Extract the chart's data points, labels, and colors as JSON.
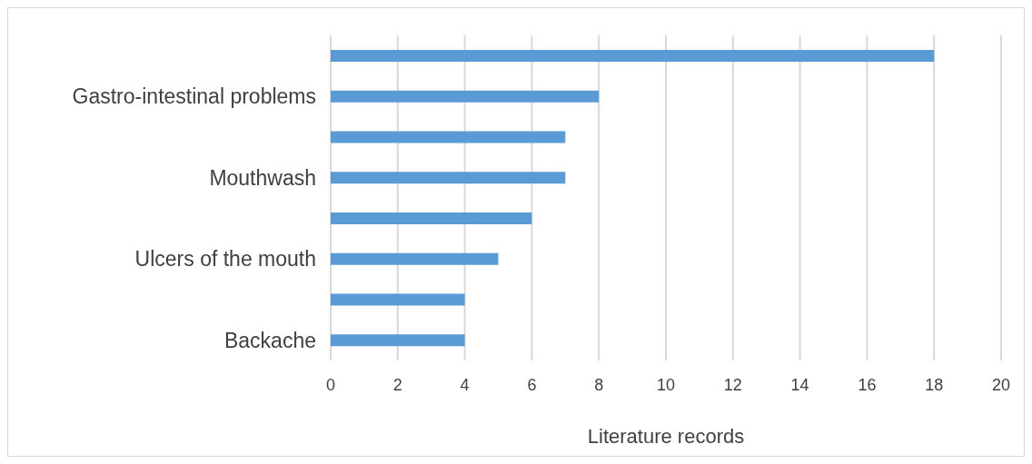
{
  "chart_data": {
    "type": "bar",
    "orientation": "horizontal",
    "xlabel": "Literature records",
    "categories": [
      null,
      "Gastro-intestinal problems",
      null,
      "Mouthwash",
      null,
      "Ulcers of the mouth",
      null,
      "Backache"
    ],
    "values": [
      18,
      8,
      7,
      7,
      6,
      5,
      4,
      4
    ],
    "color": "#5b9bd5",
    "xlim": [
      0,
      20
    ],
    "xticks": [
      0,
      2,
      4,
      6,
      8,
      10,
      12,
      14,
      16,
      18,
      20
    ],
    "grid": "x",
    "legend": false
  }
}
